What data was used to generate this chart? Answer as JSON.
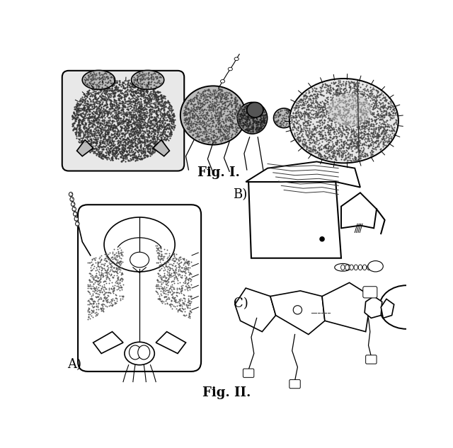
{
  "fig_width": 6.4,
  "fig_height": 6.33,
  "dpi": 100,
  "bg_color": "#ffffff",
  "fig1_caption": "Fig. I.",
  "fig2_caption": "Fig. II.",
  "label_A": "A)",
  "label_B": "B)",
  "label_C": "C)",
  "caption_fontsize": 12,
  "label_fontsize": 12,
  "caption_font": "serif",
  "text_color": "#000000",
  "lw": 1.2
}
